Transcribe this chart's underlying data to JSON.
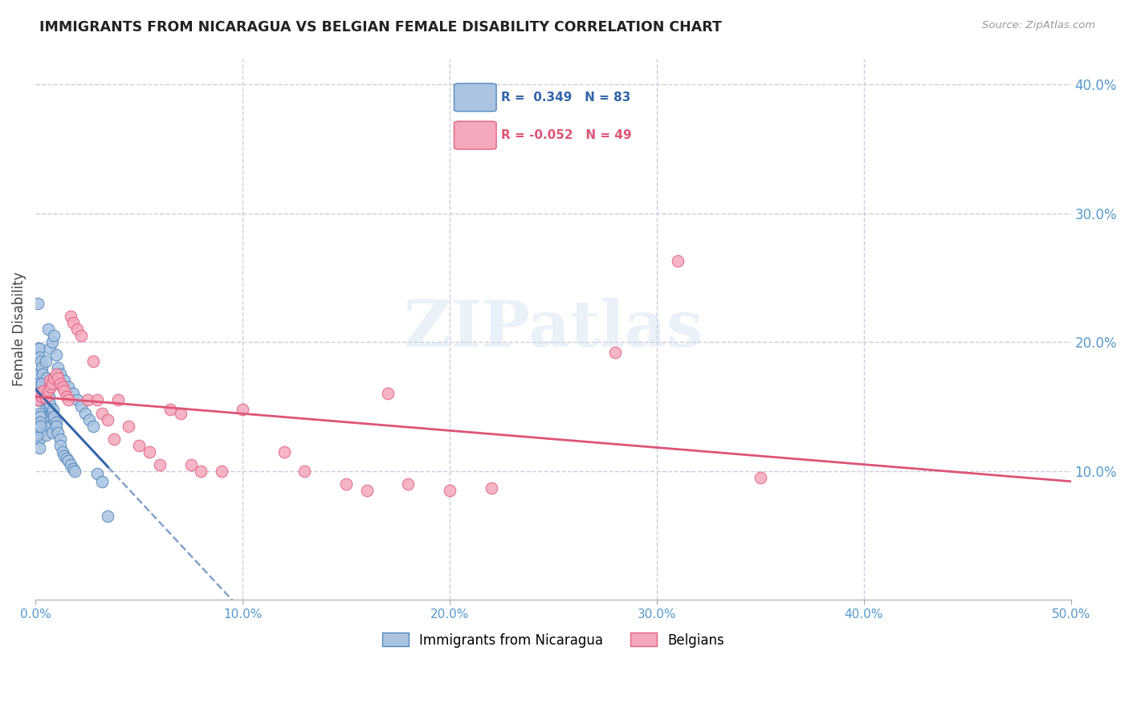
{
  "title": "IMMIGRANTS FROM NICARAGUA VS BELGIAN FEMALE DISABILITY CORRELATION CHART",
  "source": "Source: ZipAtlas.com",
  "ylabel": "Female Disability",
  "xlim": [
    0.0,
    50.0
  ],
  "ylim": [
    0.0,
    42.0
  ],
  "xtick_vals": [
    0,
    10,
    20,
    30,
    40,
    50
  ],
  "xtick_labels": [
    "0.0%",
    "10.0%",
    "20.0%",
    "30.0%",
    "40.0%",
    "50.0%"
  ],
  "ytick_vals": [
    10,
    20,
    30,
    40
  ],
  "ytick_labels": [
    "10.0%",
    "20.0%",
    "30.0%",
    "40.0%"
  ],
  "blue_R": 0.349,
  "blue_N": 83,
  "pink_R": -0.052,
  "pink_N": 49,
  "blue_color": "#aac4e2",
  "pink_color": "#f5a8bc",
  "blue_edge_color": "#5588bb",
  "pink_edge_color": "#e06080",
  "blue_line_color": "#3366aa",
  "pink_line_color": "#dd5577",
  "blue_scatter": [
    [
      0.1,
      13.0
    ],
    [
      0.2,
      12.5
    ],
    [
      0.2,
      11.8
    ],
    [
      0.3,
      13.2
    ],
    [
      0.3,
      15.5
    ],
    [
      0.4,
      14.0
    ],
    [
      0.4,
      14.5
    ],
    [
      0.5,
      14.8
    ],
    [
      0.5,
      12.8
    ],
    [
      0.6,
      13.8
    ],
    [
      0.6,
      14.2
    ],
    [
      0.7,
      15.0
    ],
    [
      0.7,
      13.5
    ],
    [
      0.8,
      14.5
    ],
    [
      0.8,
      13.0
    ],
    [
      0.9,
      14.0
    ],
    [
      0.15,
      17.5
    ],
    [
      0.15,
      19.5
    ],
    [
      0.2,
      19.5
    ],
    [
      0.2,
      18.8
    ],
    [
      0.25,
      18.5
    ],
    [
      0.3,
      18.0
    ],
    [
      0.35,
      17.5
    ],
    [
      0.4,
      16.8
    ],
    [
      0.45,
      16.0
    ],
    [
      0.5,
      16.0
    ],
    [
      0.55,
      17.2
    ],
    [
      0.6,
      16.5
    ],
    [
      0.65,
      15.8
    ],
    [
      0.7,
      15.2
    ],
    [
      0.8,
      14.5
    ],
    [
      0.85,
      14.8
    ],
    [
      0.9,
      14.2
    ],
    [
      1.0,
      13.8
    ],
    [
      1.0,
      13.5
    ],
    [
      1.1,
      13.0
    ],
    [
      1.2,
      12.5
    ],
    [
      1.2,
      12.0
    ],
    [
      1.3,
      11.5
    ],
    [
      1.4,
      11.2
    ],
    [
      1.5,
      11.0
    ],
    [
      1.6,
      10.8
    ],
    [
      1.7,
      10.5
    ],
    [
      1.8,
      10.2
    ],
    [
      1.9,
      10.0
    ],
    [
      0.05,
      13.0
    ],
    [
      0.06,
      14.3
    ],
    [
      0.07,
      13.3
    ],
    [
      0.08,
      12.8
    ],
    [
      0.09,
      13.5
    ],
    [
      0.1,
      15.5
    ],
    [
      0.12,
      23.0
    ],
    [
      0.13,
      16.0
    ],
    [
      0.14,
      15.5
    ],
    [
      0.15,
      16.8
    ],
    [
      0.16,
      16.2
    ],
    [
      0.17,
      16.5
    ],
    [
      0.18,
      15.8
    ],
    [
      0.19,
      15.5
    ],
    [
      0.2,
      14.5
    ],
    [
      0.21,
      14.2
    ],
    [
      0.22,
      13.8
    ],
    [
      0.23,
      13.5
    ],
    [
      0.3,
      16.8
    ],
    [
      0.5,
      18.5
    ],
    [
      0.6,
      21.0
    ],
    [
      0.7,
      19.5
    ],
    [
      0.8,
      20.0
    ],
    [
      0.9,
      20.5
    ],
    [
      1.0,
      19.0
    ],
    [
      1.1,
      18.0
    ],
    [
      1.2,
      17.5
    ],
    [
      1.4,
      17.0
    ],
    [
      1.6,
      16.5
    ],
    [
      1.8,
      16.0
    ],
    [
      2.0,
      15.5
    ],
    [
      2.2,
      15.0
    ],
    [
      2.4,
      14.5
    ],
    [
      2.6,
      14.0
    ],
    [
      2.8,
      13.5
    ],
    [
      3.0,
      9.8
    ],
    [
      3.2,
      9.2
    ],
    [
      3.5,
      6.5
    ]
  ],
  "pink_scatter": [
    [
      0.1,
      15.5
    ],
    [
      0.2,
      16.0
    ],
    [
      0.3,
      15.8
    ],
    [
      0.4,
      16.2
    ],
    [
      0.5,
      15.7
    ],
    [
      0.6,
      16.3
    ],
    [
      0.7,
      17.0
    ],
    [
      0.75,
      16.5
    ],
    [
      0.8,
      16.8
    ],
    [
      0.9,
      17.2
    ],
    [
      1.0,
      17.5
    ],
    [
      1.1,
      17.2
    ],
    [
      1.2,
      16.8
    ],
    [
      1.3,
      16.5
    ],
    [
      1.4,
      16.2
    ],
    [
      1.5,
      15.8
    ],
    [
      1.6,
      15.5
    ],
    [
      1.7,
      22.0
    ],
    [
      1.8,
      21.5
    ],
    [
      2.0,
      21.0
    ],
    [
      2.2,
      20.5
    ],
    [
      2.5,
      15.5
    ],
    [
      2.8,
      18.5
    ],
    [
      3.0,
      15.5
    ],
    [
      3.2,
      14.5
    ],
    [
      3.5,
      14.0
    ],
    [
      3.8,
      12.5
    ],
    [
      4.0,
      15.5
    ],
    [
      4.5,
      13.5
    ],
    [
      5.0,
      12.0
    ],
    [
      5.5,
      11.5
    ],
    [
      6.0,
      10.5
    ],
    [
      6.5,
      14.8
    ],
    [
      7.0,
      14.5
    ],
    [
      7.5,
      10.5
    ],
    [
      8.0,
      10.0
    ],
    [
      9.0,
      10.0
    ],
    [
      10.0,
      14.8
    ],
    [
      12.0,
      11.5
    ],
    [
      13.0,
      10.0
    ],
    [
      15.0,
      9.0
    ],
    [
      16.0,
      8.5
    ],
    [
      17.0,
      16.0
    ],
    [
      18.0,
      9.0
    ],
    [
      20.0,
      8.5
    ],
    [
      22.0,
      8.7
    ],
    [
      28.0,
      19.2
    ],
    [
      31.0,
      26.3
    ],
    [
      35.0,
      9.5
    ]
  ],
  "watermark": "ZIPatlas",
  "bg_color": "#ffffff",
  "grid_color": "#ccccdd",
  "title_color": "#222222",
  "axis_label_color": "#444444",
  "right_tick_color": "#5599cc",
  "legend_bg": "#eef2f8",
  "legend_border": "#ccddee"
}
